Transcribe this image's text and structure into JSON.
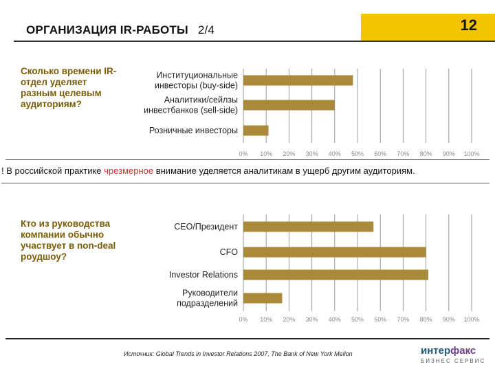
{
  "header": {
    "title": "ОРГАНИЗАЦИЯ IR-РАБОТЫ",
    "page_part": "2/4",
    "slide_number": "12"
  },
  "questions": {
    "q1": "Сколько времени IR-отдел уделяет разным целевым аудиториям?",
    "q2": "Кто из руководства компании обычно участвует в non-deal роудшоу?"
  },
  "note": {
    "prefix": "! В российской практике ",
    "highlight": "чрезмерное",
    "suffix": " внимание уделяется аналитикам в ущерб другим аудиториям."
  },
  "footer": {
    "source": "Источник: Global Trends in Investor Relations 2007, The Bank of New York Mellon",
    "logo_main_a": "интер",
    "logo_main_b": "факс",
    "logo_sub": "БИЗНЕС СЕРВИС"
  },
  "colors": {
    "bar": "#a88a3a",
    "accent": "#f5c400",
    "question": "#7a5c08",
    "highlight": "#c8312f",
    "grid": "#999999"
  },
  "chart_data": [
    {
      "type": "bar",
      "orientation": "horizontal",
      "categories": [
        [
          "Институциональные",
          "инвесторы (buy-side)"
        ],
        [
          "Аналитики/сейлзы",
          "инвестбанков (sell-side)"
        ],
        [
          "Розничные инвесторы"
        ]
      ],
      "values": [
        48,
        40,
        11
      ],
      "xlim": [
        0,
        100
      ],
      "ticks": [
        "0%",
        "10%",
        "20%",
        "30%",
        "40%",
        "50%",
        "60%",
        "70%",
        "80%",
        "90%",
        "100%"
      ],
      "grid": true
    },
    {
      "type": "bar",
      "orientation": "horizontal",
      "categories": [
        [
          "CEO/Президент"
        ],
        [
          "CFO"
        ],
        [
          "Investor Relations"
        ],
        [
          "Руководители",
          "подразделений"
        ]
      ],
      "values": [
        57,
        80,
        81,
        17
      ],
      "xlim": [
        0,
        100
      ],
      "ticks": [
        "0%",
        "10%",
        "20%",
        "30%",
        "40%",
        "50%",
        "60%",
        "70%",
        "80%",
        "90%",
        "100%"
      ],
      "grid": true
    }
  ]
}
